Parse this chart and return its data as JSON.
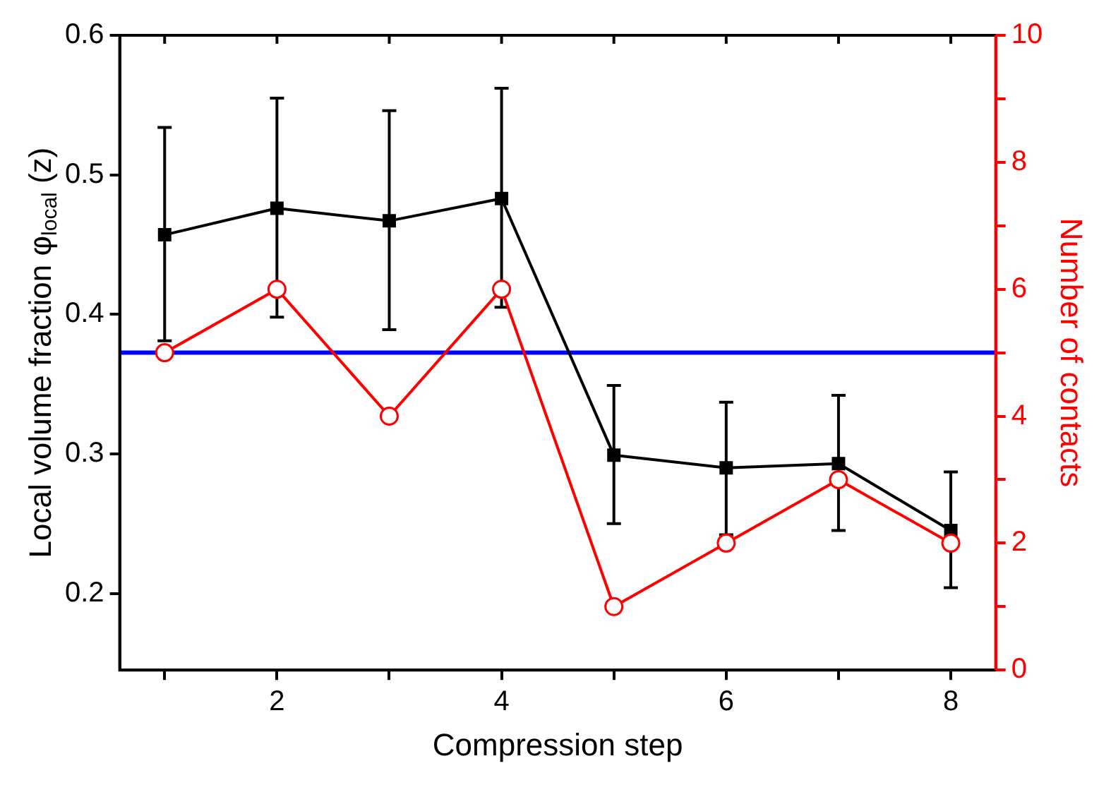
{
  "chart_data": {
    "type": "line",
    "xlabel": "Compression step",
    "ylabel": "Local volume fraction φ$_{local}$ (z)",
    "y2label": "Number of contacts",
    "x": [
      1,
      2,
      3,
      4,
      5,
      6,
      7,
      8
    ],
    "series": [
      {
        "color": "#000000",
        "marker": "square",
        "values": [
          0.457,
          0.476,
          0.467,
          0.483,
          0.299,
          0.29,
          0.293,
          0.245
        ],
        "errors": [
          [
            0.381,
            0.534
          ],
          [
            0.398,
            0.555
          ],
          [
            0.389,
            0.546
          ],
          [
            0.405,
            0.562
          ],
          [
            0.25,
            0.349
          ],
          [
            0.242,
            0.337
          ],
          [
            0.245,
            0.342
          ],
          [
            0.204,
            0.287
          ]
        ]
      },
      {
        "color": "#ff0000",
        "marker": "circle",
        "axis": "y2",
        "values": [
          5,
          6,
          4,
          6,
          1,
          2,
          3,
          2
        ]
      }
    ],
    "xlim": [
      0.6,
      8.4
    ],
    "xticks": [
      {
        "value": 1,
        "label": null
      },
      2,
      {
        "value": 3,
        "label": null
      },
      4,
      {
        "value": 5,
        "label": null
      },
      6,
      {
        "value": 7,
        "label": null
      },
      8
    ],
    "ylim": [
      0.145,
      0.6
    ],
    "yticks": [
      0.2,
      0.3,
      0.4,
      0.5,
      0.6
    ],
    "y2lim": [
      0,
      10
    ],
    "y2ticks": [
      0,
      {
        "value": 1,
        "label": null
      },
      2,
      {
        "value": 3,
        "label": null
      },
      4,
      {
        "value": 5,
        "label": null
      },
      6,
      {
        "value": 7,
        "label": null
      },
      8,
      {
        "value": 9,
        "label": null
      },
      10
    ],
    "ref_lines": [
      {
        "axis": "y2",
        "value": 5,
        "color": "#0000ff"
      }
    ],
    "grid": false,
    "legend": false
  }
}
